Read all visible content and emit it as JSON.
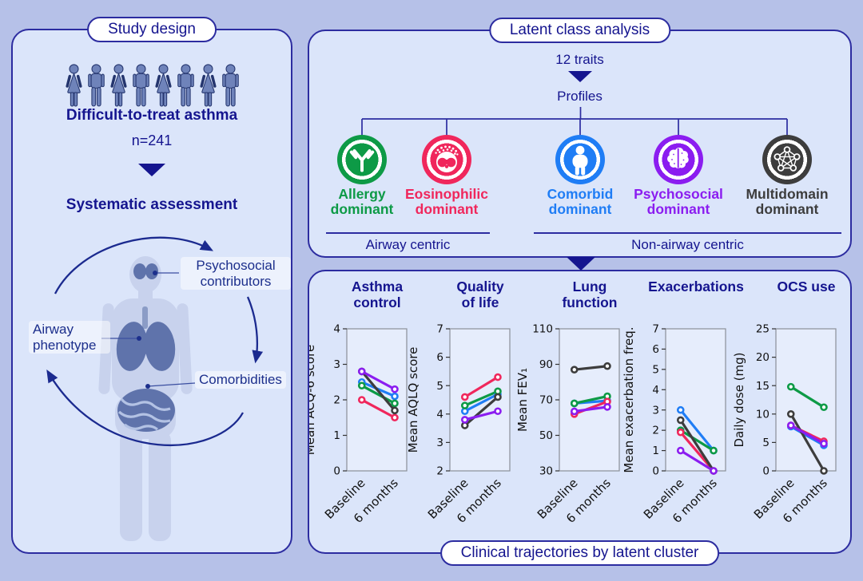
{
  "page": {
    "bg": "#b6c1e8",
    "panel_bg": "#dbe5fa",
    "navy": "#15158f"
  },
  "study_panel": {
    "title": "Study design",
    "people_count": 8,
    "cohort_label": "Difficult-to-treat asthma",
    "cohort_n": "n=241",
    "assessment_label": "Systematic assessment",
    "labels": {
      "psychosocial": "Psychosocial contributors",
      "airway": "Airway phenotype",
      "comorbidities": "Comorbidities"
    }
  },
  "lca_panel": {
    "title": "Latent class analysis",
    "traits_label": "12 traits",
    "profiles_label": "Profiles",
    "profiles": [
      {
        "label": "Allergy dominant",
        "color": "#0d9a46",
        "icon": "antibody-icon"
      },
      {
        "label": "Eosinophilic dominant",
        "color": "#f0275c",
        "icon": "eosinophil-icon"
      },
      {
        "label": "Comorbid dominant",
        "color": "#1f7df5",
        "icon": "person-icon"
      },
      {
        "label": "Psychosocial dominant",
        "color": "#8b1df0",
        "icon": "brain-icon"
      },
      {
        "label": "Multidomain dominant",
        "color": "#3d3d3d",
        "icon": "network-icon"
      }
    ],
    "groups": [
      {
        "label": "Airway centric"
      },
      {
        "label": "Non-airway centric"
      }
    ]
  },
  "trajectories_panel": {
    "title": "Clinical trajectories by latent cluster",
    "chart_titles": [
      "Asthma\ncontrol",
      "Quality\nof life",
      "Lung\nfunction",
      "Exacerbations",
      "OCS use"
    ]
  },
  "chart_data": [
    {
      "type": "line",
      "title": "Asthma control",
      "ylabel": "Mean ACQ-6 score",
      "ylim": [
        0,
        4
      ],
      "yticks": [
        0,
        1,
        2,
        3,
        4
      ],
      "categories": [
        "Baseline",
        "6 months"
      ],
      "series": [
        {
          "name": "Allergy dominant",
          "color": "#0d9a46",
          "values": [
            2.4,
            1.9
          ]
        },
        {
          "name": "Eosinophilic dominant",
          "color": "#f0275c",
          "values": [
            2.0,
            1.5
          ]
        },
        {
          "name": "Comorbid dominant",
          "color": "#1f7df5",
          "values": [
            2.5,
            2.1
          ]
        },
        {
          "name": "Psychosocial dominant",
          "color": "#8b1df0",
          "values": [
            2.8,
            2.3
          ]
        },
        {
          "name": "Multidomain dominant",
          "color": "#3d3d3d",
          "values": [
            2.8,
            1.7
          ]
        }
      ]
    },
    {
      "type": "line",
      "title": "Quality of life",
      "ylabel": "Mean AQLQ score",
      "ylim": [
        2,
        7
      ],
      "yticks": [
        2,
        3,
        4,
        5,
        6,
        7
      ],
      "categories": [
        "Baseline",
        "6 months"
      ],
      "series": [
        {
          "name": "Allergy dominant",
          "color": "#0d9a46",
          "values": [
            4.3,
            4.8
          ]
        },
        {
          "name": "Eosinophilic dominant",
          "color": "#f0275c",
          "values": [
            4.6,
            5.3
          ]
        },
        {
          "name": "Comorbid dominant",
          "color": "#1f7df5",
          "values": [
            4.1,
            4.7
          ]
        },
        {
          "name": "Psychosocial dominant",
          "color": "#8b1df0",
          "values": [
            3.8,
            4.1
          ]
        },
        {
          "name": "Multidomain dominant",
          "color": "#3d3d3d",
          "values": [
            3.6,
            4.6
          ]
        }
      ]
    },
    {
      "type": "line",
      "title": "Lung function",
      "ylabel": "Mean FEV₁",
      "ylim": [
        30,
        110
      ],
      "yticks": [
        30,
        50,
        70,
        90,
        110
      ],
      "categories": [
        "Baseline",
        "6 months"
      ],
      "series": [
        {
          "name": "Allergy dominant",
          "color": "#0d9a46",
          "values": [
            68,
            72
          ]
        },
        {
          "name": "Eosinophilic dominant",
          "color": "#f0275c",
          "values": [
            62,
            69
          ]
        },
        {
          "name": "Comorbid dominant",
          "color": "#1f7df5",
          "values": [
            68,
            69.5
          ]
        },
        {
          "name": "Psychosocial dominant",
          "color": "#8b1df0",
          "values": [
            63.5,
            66
          ]
        },
        {
          "name": "Multidomain dominant",
          "color": "#3d3d3d",
          "values": [
            87,
            89
          ]
        }
      ]
    },
    {
      "type": "line",
      "title": "Exacerbations",
      "ylabel": "Mean exacerbation freq.",
      "ylim": [
        0,
        7
      ],
      "yticks": [
        0,
        1,
        2,
        3,
        4,
        5,
        6,
        7
      ],
      "categories": [
        "Baseline",
        "6 months"
      ],
      "series": [
        {
          "name": "Allergy dominant",
          "color": "#0d9a46",
          "values": [
            2.0,
            1.0
          ]
        },
        {
          "name": "Eosinophilic dominant",
          "color": "#f0275c",
          "values": [
            1.9,
            0
          ]
        },
        {
          "name": "Comorbid dominant",
          "color": "#1f7df5",
          "values": [
            3.0,
            1.0
          ]
        },
        {
          "name": "Psychosocial dominant",
          "color": "#8b1df0",
          "values": [
            1.0,
            0
          ]
        },
        {
          "name": "Multidomain dominant",
          "color": "#3d3d3d",
          "values": [
            2.5,
            0
          ]
        }
      ]
    },
    {
      "type": "line",
      "title": "OCS use",
      "ylabel": "Daily dose (mg)",
      "ylim": [
        0,
        25
      ],
      "yticks": [
        0,
        5,
        10,
        15,
        20,
        25
      ],
      "categories": [
        "Baseline",
        "6 months"
      ],
      "series": [
        {
          "name": "Allergy dominant",
          "color": "#0d9a46",
          "values": [
            14.8,
            11.2
          ]
        },
        {
          "name": "Eosinophilic dominant",
          "color": "#f0275c",
          "values": [
            8.0,
            5.2
          ]
        },
        {
          "name": "Comorbid dominant",
          "color": "#1f7df5",
          "values": [
            7.8,
            4.5
          ]
        },
        {
          "name": "Psychosocial dominant",
          "color": "#8b1df0",
          "values": [
            8.0,
            4.8
          ]
        },
        {
          "name": "Multidomain dominant",
          "color": "#3d3d3d",
          "values": [
            10.0,
            0
          ]
        }
      ]
    }
  ]
}
